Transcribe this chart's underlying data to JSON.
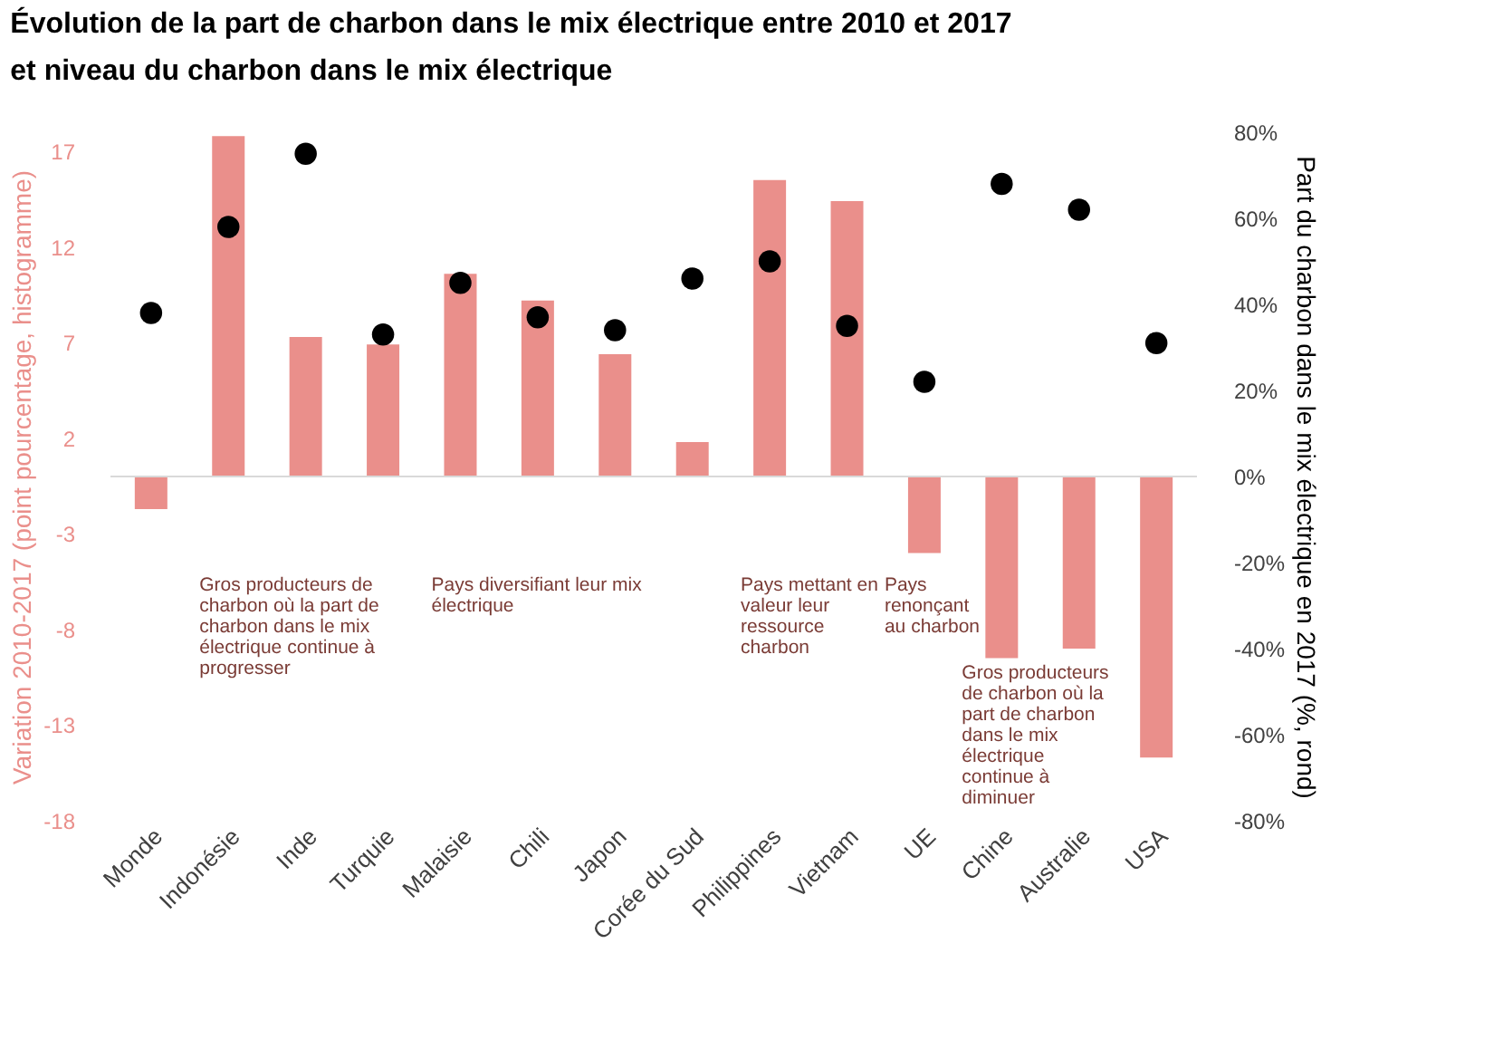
{
  "chart_data": {
    "type": "bar",
    "title": [
      "Évolution de la part de charbon dans le mix électrique entre 2010 et 2017",
      "et niveau du charbon dans le mix électrique"
    ],
    "categories": [
      "Monde",
      "Indonésie",
      "Inde",
      "Turquie",
      "Malaisie",
      "Chili",
      "Japon",
      "Corée du Sud",
      "Philippines",
      "Vietnam",
      "UE",
      "Chine",
      "Australie",
      "USA"
    ],
    "series": [
      {
        "type": "bar",
        "color": "#ea8f8b",
        "values": [
          -1.7,
          17.8,
          7.3,
          6.9,
          10.6,
          9.2,
          6.4,
          1.8,
          15.5,
          14.4,
          -4.0,
          -9.5,
          -9.0,
          -14.7
        ]
      },
      {
        "type": "scatter",
        "axis": "y2",
        "color": "#000000",
        "values": [
          38,
          58,
          75,
          33,
          45,
          37,
          34,
          46,
          50,
          35,
          22,
          68,
          62,
          31
        ]
      }
    ],
    "ylabel": "Variation 2010-2017 (point pourcentage, histogramme)",
    "y2label": "Part du charbon dans le mix électrique en 2017 (%, rond)",
    "ylim": [
      -18,
      18
    ],
    "yticks": [
      -18,
      -13,
      -8,
      -3,
      2,
      7,
      12,
      17
    ],
    "y2lim": [
      -80,
      80
    ],
    "y2ticks": [
      {
        "value": -80,
        "label": "-80%"
      },
      {
        "value": -60,
        "label": "-60%"
      },
      {
        "value": -40,
        "label": "-40%"
      },
      {
        "value": -20,
        "label": "-20%"
      },
      {
        "value": 0,
        "label": "0%"
      },
      {
        "value": 20,
        "label": "20%"
      },
      {
        "value": 40,
        "label": "40%"
      },
      {
        "value": 60,
        "label": "60%"
      },
      {
        "value": 80,
        "label": "80%"
      }
    ],
    "ref_lines": [
      {
        "axis": "y",
        "value": 0,
        "color": "#d9d9d9"
      }
    ],
    "annotations": [
      "Gros producteurs de\ncharbon où la part de\ncharbon dans le mix\nélectrique continue à\nprogresser",
      "Pays diversifiant leur mix\nélectrique",
      "Pays mettant en\nvaleur leur\nressource\ncharbon",
      "Pays\nrenonçant\nau charbon",
      "Gros producteurs\nde charbon où la\npart de charbon\ndans le mix\nélectrique\ncontinue à\ndiminuer"
    ],
    "marker": "circle",
    "grid": false
  }
}
